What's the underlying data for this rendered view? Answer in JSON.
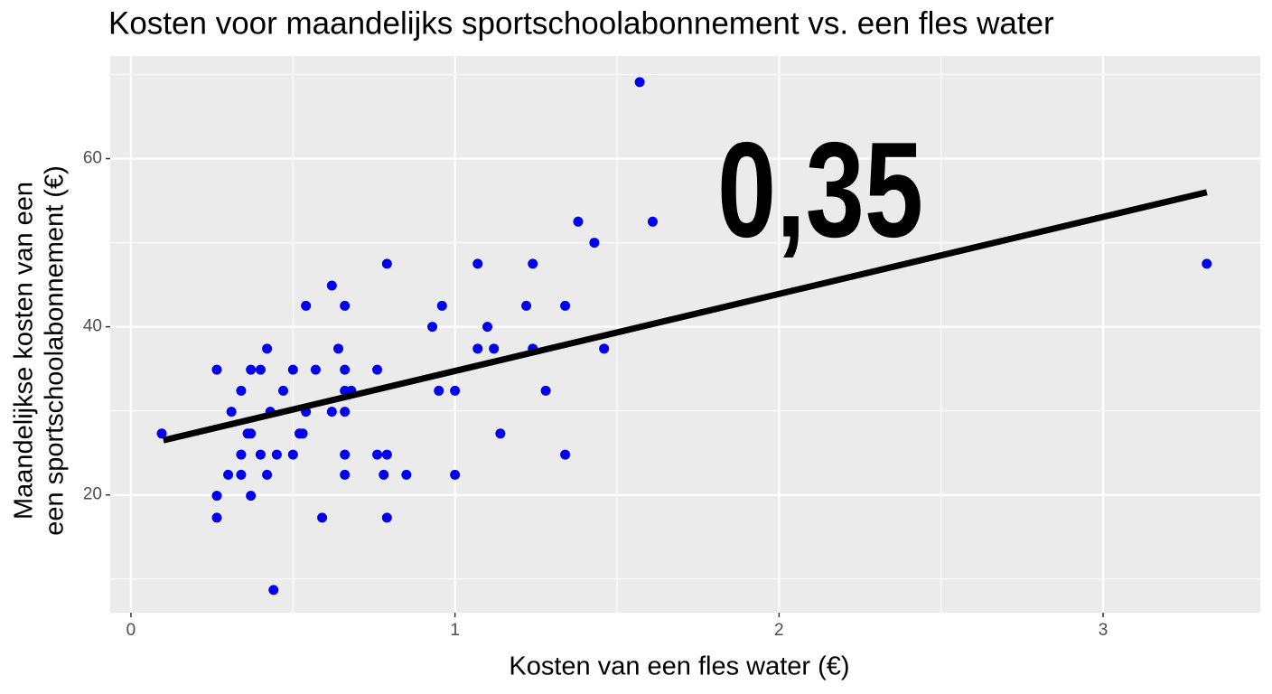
{
  "chart_data": {
    "type": "scatter",
    "title": "Kosten voor maandelijks sportschoolabonnement vs. een fles water",
    "xlabel": "Kosten van een fles water (€)",
    "ylabel": [
      "Maandelijkse kosten van een",
      "een sportschoolabonnement (€)"
    ],
    "annotation": "0,35",
    "xlim": [
      -0.064,
      3.485
    ],
    "ylim": [
      6,
      72.2
    ],
    "xticks": [
      0,
      1,
      2,
      3
    ],
    "yticks": [
      20,
      40,
      60
    ],
    "x_minor_grid": [
      0.5,
      1.5,
      2.5
    ],
    "y_minor_grid": [
      10,
      30,
      50,
      70
    ],
    "grid": true,
    "fit_line": {
      "color": "#000000",
      "x": [
        0.1,
        3.32
      ],
      "y": [
        26.5,
        56
      ]
    },
    "series": [
      {
        "color": "#0000ee",
        "x": [
          0.095,
          0.265,
          0.265,
          0.265,
          0.3,
          0.31,
          0.34,
          0.34,
          0.34,
          0.36,
          0.37,
          0.37,
          0.37,
          0.4,
          0.4,
          0.42,
          0.42,
          0.43,
          0.44,
          0.45,
          0.47,
          0.5,
          0.5,
          0.52,
          0.53,
          0.54,
          0.54,
          0.57,
          0.59,
          0.62,
          0.62,
          0.64,
          0.66,
          0.66,
          0.66,
          0.66,
          0.66,
          0.66,
          0.68,
          0.76,
          0.76,
          0.78,
          0.79,
          0.79,
          0.79,
          0.85,
          0.93,
          0.95,
          0.96,
          1.0,
          1.0,
          1.07,
          1.07,
          1.1,
          1.12,
          1.14,
          1.22,
          1.24,
          1.24,
          1.28,
          1.34,
          1.34,
          1.38,
          1.43,
          1.46,
          1.57,
          1.61,
          3.32
        ],
        "values": [
          27.3,
          34.9,
          19.9,
          17.3,
          22.4,
          29.9,
          24.8,
          22.4,
          32.4,
          27.3,
          27.3,
          34.9,
          19.9,
          34.9,
          24.8,
          37.4,
          22.4,
          29.9,
          8.7,
          24.8,
          32.4,
          34.9,
          24.8,
          27.3,
          27.3,
          42.5,
          29.9,
          34.9,
          17.3,
          44.9,
          29.9,
          37.4,
          42.5,
          34.9,
          32.4,
          29.9,
          24.8,
          22.4,
          32.4,
          34.9,
          24.8,
          22.4,
          47.5,
          24.8,
          17.3,
          22.4,
          40.0,
          32.4,
          42.5,
          32.4,
          22.4,
          47.5,
          37.4,
          40.0,
          37.4,
          27.3,
          42.5,
          47.5,
          37.4,
          32.4,
          42.5,
          24.8,
          52.5,
          50.0,
          37.4,
          69.1,
          52.5,
          47.5
        ]
      }
    ]
  }
}
